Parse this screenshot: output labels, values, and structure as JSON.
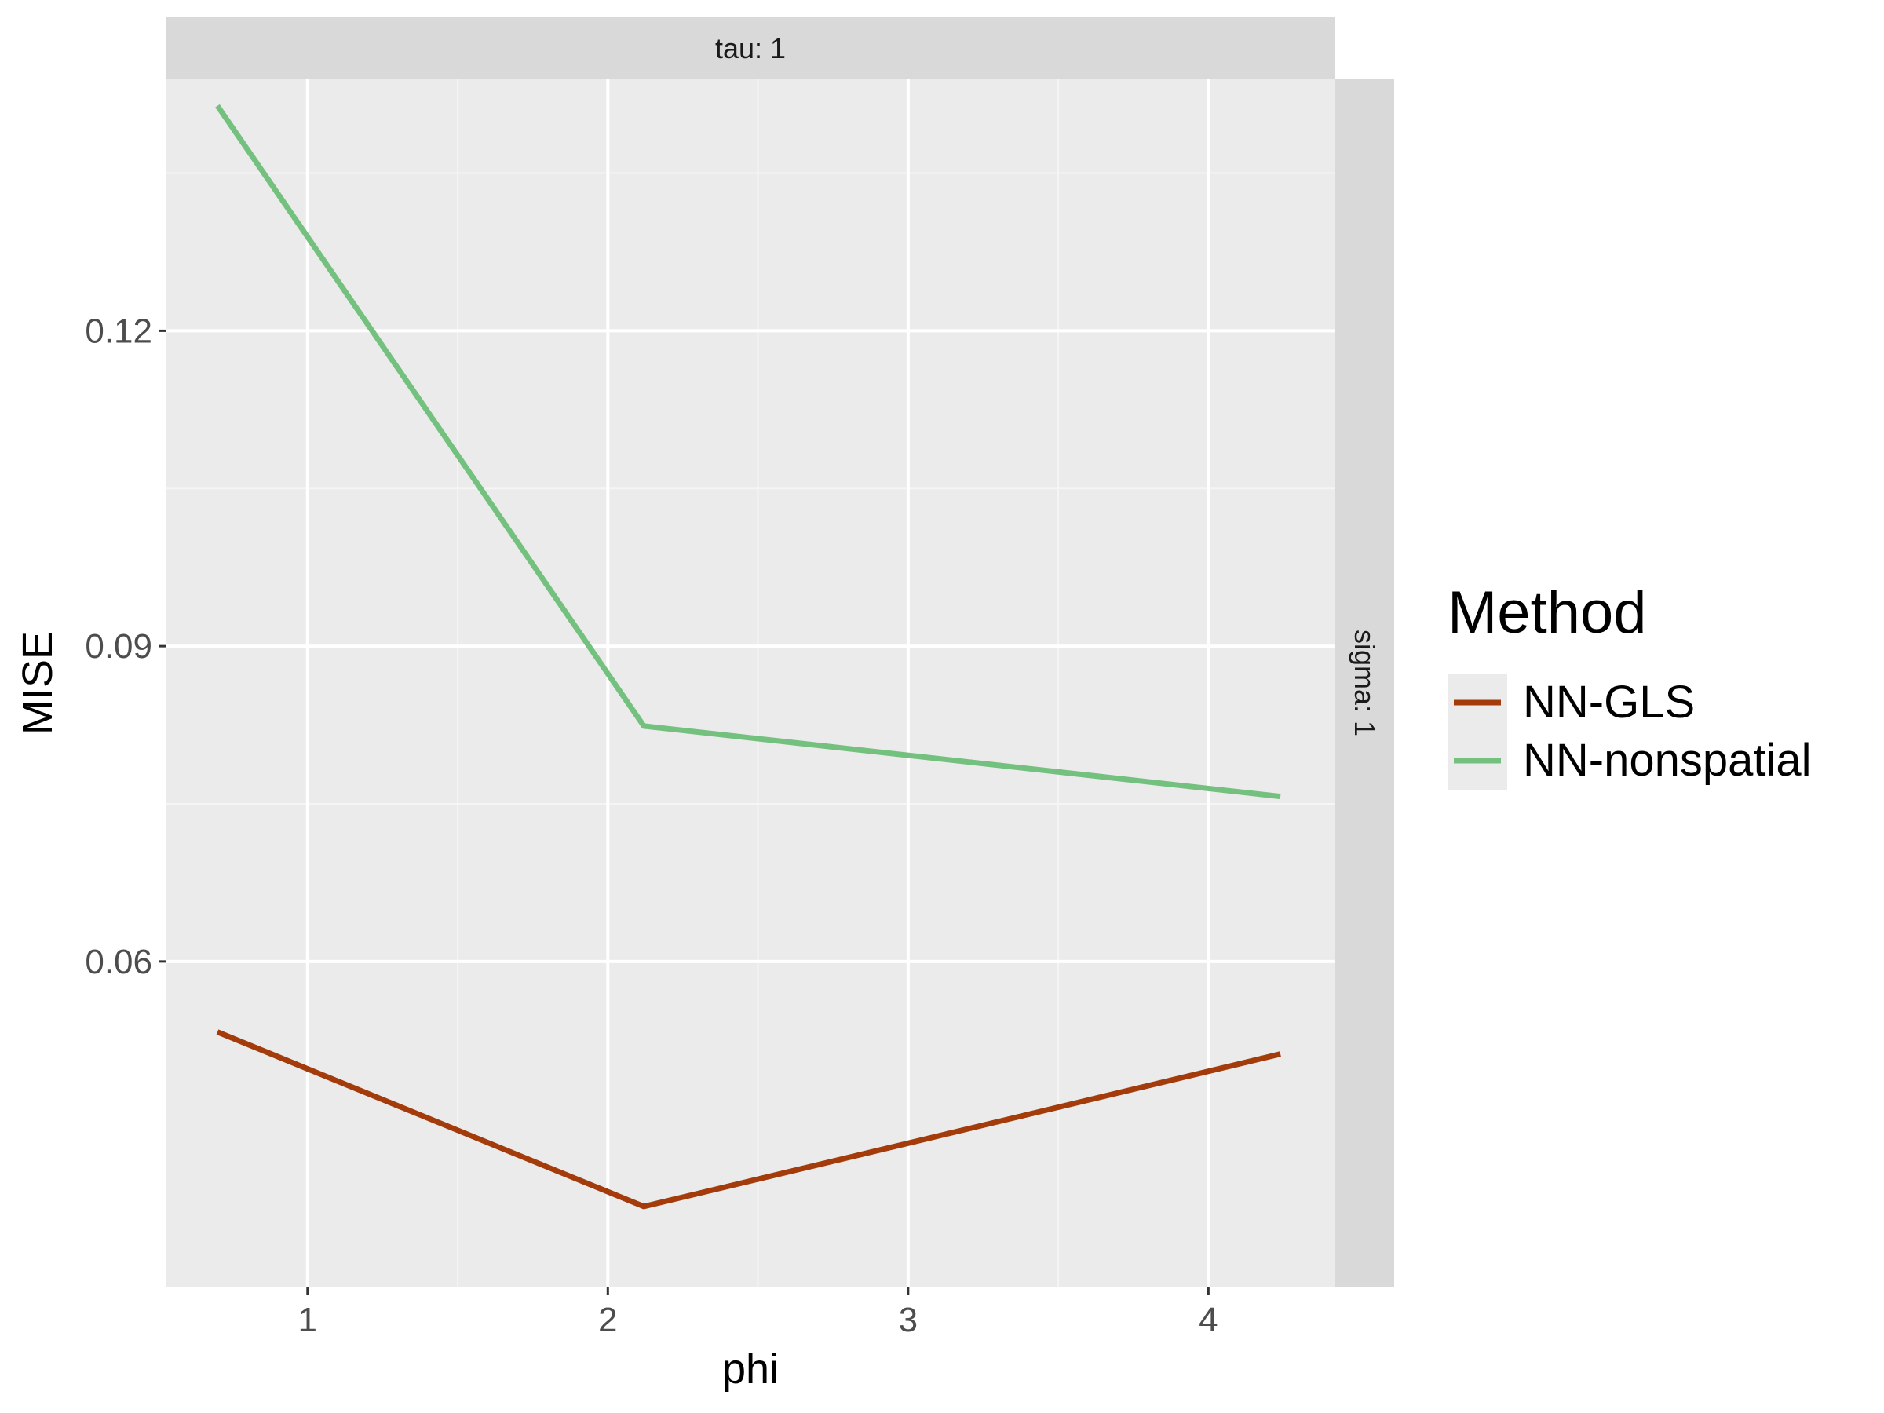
{
  "chart_data": {
    "type": "line",
    "facet_top": "tau: 1",
    "facet_right": "sigma: 1",
    "xlabel": "phi",
    "ylabel": "MISE",
    "xlim": [
      0.53,
      4.42
    ],
    "ylim": [
      0.029,
      0.144
    ],
    "xticks": [
      1,
      2,
      3,
      4
    ],
    "xtick_labels": [
      "1",
      "2",
      "3",
      "4"
    ],
    "yticks": [
      0.06,
      0.09,
      0.12
    ],
    "ytick_labels": [
      "0.06",
      "0.09",
      "0.12"
    ],
    "x_minor": [
      1.5,
      2.5,
      3.5
    ],
    "y_minor": [
      0.075,
      0.105,
      0.135
    ],
    "grid": true,
    "legend": {
      "title": "Method",
      "placement": "right"
    },
    "series": [
      {
        "name": "NN-GLS",
        "color": "#a33b0b",
        "x": [
          0.7,
          2.12,
          4.24
        ],
        "y": [
          0.0533,
          0.0367,
          0.0512
        ]
      },
      {
        "name": "NN-nonspatial",
        "color": "#74c17f",
        "x": [
          0.7,
          2.12,
          4.24
        ],
        "y": [
          0.1414,
          0.0824,
          0.0757
        ]
      }
    ]
  }
}
